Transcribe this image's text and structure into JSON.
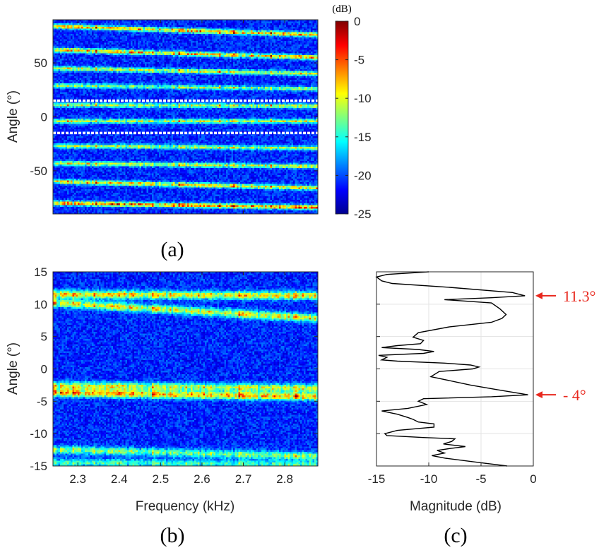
{
  "panels": {
    "a": "(a)",
    "b": "(b)",
    "c": "(c)"
  },
  "colors": {
    "annotation": "#e8281e",
    "line": "#000000",
    "guide": "#ffffff"
  },
  "chart_data": [
    {
      "type": "heatmap",
      "panel": "(a)",
      "title": "",
      "xlabel": "",
      "ylabel": "Angle (°)",
      "xlim": [
        2.24,
        2.88
      ],
      "ylim": [
        -90,
        90
      ],
      "yticks": [
        50,
        0,
        -50
      ],
      "xticks": [
        2.3,
        2.4,
        2.5,
        2.6,
        2.7,
        2.8
      ],
      "guide_lines_deg": [
        15,
        -15
      ],
      "colorbar": {
        "unit": "(dB)",
        "range": [
          -25,
          0
        ],
        "ticks": [
          0,
          -5,
          -10,
          -15,
          -20,
          -25
        ],
        "colormap": "jet"
      },
      "bands": [
        {
          "angle_start": 84,
          "angle_end": 76,
          "strength": 0.75
        },
        {
          "angle_start": 62,
          "angle_end": 55,
          "strength": 0.75
        },
        {
          "angle_start": 45,
          "angle_end": 40,
          "strength": 0.6
        },
        {
          "angle_start": 29,
          "angle_end": 26,
          "strength": 0.5
        },
        {
          "angle_start": 11,
          "angle_end": 10,
          "strength": 0.55
        },
        {
          "angle_start": -4,
          "angle_end": -4,
          "strength": 0.6
        },
        {
          "angle_start": -27,
          "angle_end": -29,
          "strength": 0.55
        },
        {
          "angle_start": -43,
          "angle_end": -46,
          "strength": 0.6
        },
        {
          "angle_start": -60,
          "angle_end": -66,
          "strength": 0.7
        },
        {
          "angle_start": -80,
          "angle_end": -84,
          "strength": 0.85
        }
      ]
    },
    {
      "type": "heatmap",
      "panel": "(b)",
      "title": "",
      "xlabel": "Frequency (kHz)",
      "ylabel": "Angle (°)",
      "xlim": [
        2.24,
        2.88
      ],
      "ylim": [
        -15,
        15
      ],
      "xticks": [
        2.3,
        2.4,
        2.5,
        2.6,
        2.7,
        2.8
      ],
      "yticks": [
        15,
        10,
        5,
        0,
        -5,
        -10,
        -15
      ],
      "bands": [
        {
          "angle_start": 11.5,
          "angle_end": 11.3,
          "strength": 0.7
        },
        {
          "angle_start": 10.2,
          "angle_end": 7.8,
          "strength": 0.65
        },
        {
          "angle_start": -2.6,
          "angle_end": -3.0,
          "strength": 0.6
        },
        {
          "angle_start": -3.7,
          "angle_end": -4.3,
          "strength": 0.75
        },
        {
          "angle_start": -12.5,
          "angle_end": -13.5,
          "strength": 0.5
        },
        {
          "angle_start": -14.5,
          "angle_end": -14.8,
          "strength": 0.4
        }
      ]
    },
    {
      "type": "line",
      "panel": "(c)",
      "title": "",
      "xlabel": "Magnitude (dB)",
      "ylabel": "",
      "xlim": [
        -15,
        0
      ],
      "ylim": [
        -15,
        15
      ],
      "xticks": [
        -15,
        -10,
        -5,
        0
      ],
      "grid": true,
      "series": [
        {
          "x": [
            -10,
            -14,
            -15,
            -14.5,
            -13.5,
            -8,
            -2,
            -0.8,
            -4,
            -8.5,
            -4,
            -3.2,
            -2.6,
            -3,
            -4,
            -8,
            -11,
            -11.5,
            -10.5,
            -10.8,
            -13,
            -14.5,
            -11,
            -9.5,
            -10.5,
            -14.8,
            -14,
            -14.5,
            -13,
            -8.5,
            -6,
            -5.2,
            -5.8,
            -9,
            -9.8,
            -6,
            -3.5,
            -0.5,
            -4,
            -10.5,
            -11,
            -10.2,
            -12,
            -14.5,
            -13,
            -12,
            -11.5,
            -11,
            -9.5,
            -9.5,
            -13,
            -14.2,
            -14,
            -10.5,
            -7.5,
            -7.8,
            -8.6,
            -6.5,
            -8,
            -9.2,
            -8.5,
            -9.7,
            -8.4,
            -5,
            -2.5
          ],
          "y": [
            15,
            14.6,
            14.2,
            13.6,
            13.2,
            12.6,
            11.8,
            11.3,
            11,
            10.7,
            10.2,
            9.3,
            8.4,
            7.8,
            7.2,
            6.5,
            5.6,
            4.9,
            4.4,
            3.9,
            3.6,
            3.3,
            3.0,
            2.7,
            2.4,
            2.1,
            1.8,
            1.4,
            1.2,
            0.9,
            0.6,
            0.3,
            0.0,
            -0.4,
            -1.2,
            -2.5,
            -3.2,
            -4.0,
            -4.3,
            -4.6,
            -5.0,
            -5.5,
            -6.1,
            -6.5,
            -7.0,
            -7.5,
            -7.8,
            -8.2,
            -8.5,
            -9.0,
            -9.5,
            -10.0,
            -10.3,
            -10.6,
            -10.8,
            -11.2,
            -11.6,
            -12.0,
            -12.3,
            -12.6,
            -13.0,
            -13.4,
            -13.8,
            -14.5,
            -15
          ]
        }
      ],
      "annotations": [
        {
          "label": "11.3°",
          "angle": 11.3
        },
        {
          "label": "- 4°",
          "angle": -4
        }
      ]
    }
  ]
}
